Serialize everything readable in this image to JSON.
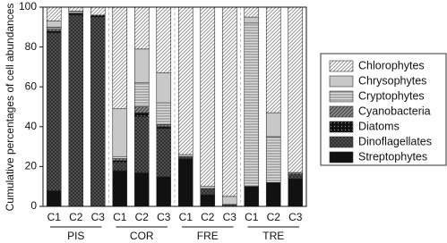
{
  "chart_data": {
    "type": "stacked_bar",
    "y_label": "Cumulative percentages of cell abundances",
    "categories": [
      "C1",
      "C2",
      "C3",
      "C1",
      "C2",
      "C3",
      "C1",
      "C2",
      "C3",
      "C1",
      "C2",
      "C3"
    ],
    "groups": [
      "PIS",
      "COR",
      "FRE",
      "TRE"
    ],
    "ylim": [
      0,
      100
    ],
    "yticks": [
      0,
      20,
      40,
      60,
      80,
      100
    ],
    "series": [
      {
        "name": "Streptophytes",
        "color": "#111111",
        "pattern": "solid",
        "values": [
          8,
          0,
          0,
          18,
          17,
          15,
          24,
          6,
          0,
          10,
          12,
          14
        ]
      },
      {
        "name": "Dinoflagellates",
        "color": "#2a2a2a",
        "pattern": "cross",
        "values": [
          79,
          96,
          95,
          4,
          28,
          24,
          1,
          3,
          1,
          0,
          0,
          2
        ]
      },
      {
        "name": "Diatoms",
        "color": "#111111",
        "pattern": "dots",
        "values": [
          1,
          1,
          1,
          1,
          2,
          1,
          0,
          0,
          0,
          0,
          0,
          0
        ]
      },
      {
        "name": "Cyanobacteria",
        "color": "#444444",
        "pattern": "diagdense",
        "values": [
          1,
          0,
          0,
          1,
          3,
          1,
          0,
          0,
          0,
          0,
          0,
          1
        ]
      },
      {
        "name": "Cryptophytes",
        "color": "#777777",
        "pattern": "hlines",
        "values": [
          1,
          1,
          0,
          1,
          12,
          11,
          0,
          0,
          0,
          82,
          23,
          0
        ]
      },
      {
        "name": "Chrysophytes",
        "color": "#c8c8c8",
        "pattern": "solid",
        "values": [
          3,
          0,
          0,
          24,
          17,
          15,
          1,
          1,
          4,
          3,
          12,
          0
        ]
      },
      {
        "name": "Chlorophytes",
        "color": "#888888",
        "pattern": "diag",
        "values": [
          7,
          2,
          4,
          51,
          21,
          33,
          74,
          90,
          95,
          5,
          53,
          83
        ]
      }
    ]
  }
}
